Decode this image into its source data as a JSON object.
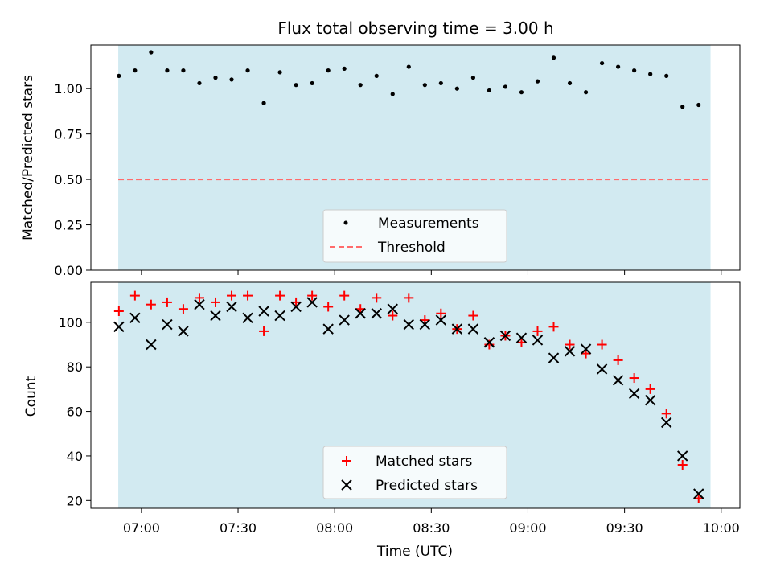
{
  "chart_data": {
    "type": "scatter",
    "title": "Flux total observing time = 3.00 h",
    "xlabel": "Time (UTC)",
    "x_tick_labels": [
      "07:00",
      "07:30",
      "08:00",
      "08:30",
      "09:00",
      "09:30",
      "10:00"
    ],
    "x_tick_minutes": [
      420,
      450,
      480,
      510,
      540,
      570,
      600
    ],
    "xlim_minutes": [
      404.3,
      605.8
    ],
    "shaded_span_minutes": [
      412.8,
      596.7
    ],
    "shade_color": "#add8e6",
    "x_minutes": [
      413,
      418,
      423,
      428,
      433,
      438,
      443,
      448,
      453,
      458,
      463,
      468,
      473,
      478,
      483,
      488,
      493,
      498,
      503,
      508,
      513,
      518,
      523,
      528,
      533,
      538,
      543,
      548,
      553,
      558,
      563,
      568,
      573,
      578,
      583,
      588,
      593
    ],
    "panels": [
      {
        "ylabel": "Matched/Predicted stars",
        "ylim": [
          0,
          1.24
        ],
        "yticks": [
          0,
          0.25,
          0.5,
          0.75,
          1.0
        ],
        "ytick_labels": [
          "0.00",
          "0.25",
          "0.50",
          "0.75",
          "1.00"
        ],
        "series": [
          {
            "name": "Measurements",
            "marker": "dot",
            "color": "#000000",
            "values": [
              1.07,
              1.1,
              1.2,
              1.1,
              1.1,
              1.03,
              1.06,
              1.05,
              1.1,
              0.92,
              1.09,
              1.02,
              1.03,
              1.1,
              1.11,
              1.02,
              1.07,
              0.97,
              1.12,
              1.02,
              1.03,
              1.0,
              1.06,
              0.99,
              1.01,
              0.98,
              1.04,
              1.17,
              1.03,
              0.98,
              1.14,
              1.12,
              1.1,
              1.08,
              1.07,
              0.9,
              0.91
            ]
          }
        ],
        "threshold": {
          "name": "Threshold",
          "value": 0.5,
          "color": "#ff6b6b"
        },
        "legend": [
          "Measurements",
          "Threshold"
        ],
        "legend_loc": "lower center"
      },
      {
        "ylabel": "Count",
        "ylim": [
          16.5,
          118
        ],
        "yticks": [
          20,
          40,
          60,
          80,
          100
        ],
        "ytick_labels": [
          "20",
          "40",
          "60",
          "80",
          "100"
        ],
        "series": [
          {
            "name": "Matched stars",
            "marker": "plus",
            "color": "#ff0000",
            "values": [
              105,
              112,
              108,
              109,
              106,
              111,
              109,
              112,
              112,
              96,
              112,
              109,
              112,
              107,
              112,
              106,
              111,
              103,
              111,
              101,
              104,
              97,
              103,
              90,
              94,
              91,
              96,
              98,
              90,
              86,
              90,
              83,
              75,
              70,
              59,
              36,
              21
            ]
          },
          {
            "name": "Predicted stars",
            "marker": "x",
            "color": "#000000",
            "values": [
              98,
              102,
              90,
              99,
              96,
              108,
              103,
              107,
              102,
              105,
              103,
              107,
              109,
              97,
              101,
              104,
              104,
              106,
              99,
              99,
              101,
              97,
              97,
              91,
              94,
              93,
              92,
              84,
              87,
              88,
              79,
              74,
              68,
              65,
              55,
              40,
              23
            ]
          }
        ],
        "legend": [
          "Matched stars",
          "Predicted stars"
        ],
        "legend_loc": "lower center"
      }
    ]
  }
}
